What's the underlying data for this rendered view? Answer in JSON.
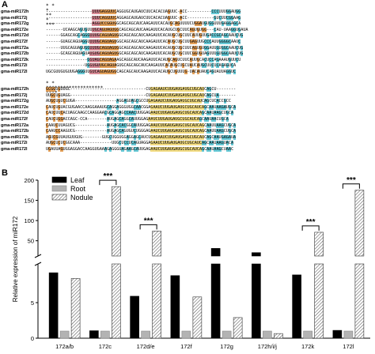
{
  "panel_a": {
    "label": "A",
    "block1": {
      "stars": "              *     *   *   **   *     ***",
      "rows": [
        {
          "name": "gma-miR172h",
          "seq": "-------------------UUUGAGGUUCAGGUGCAUGAUCUUCACACUAGUUC-ACC----------CCCUUUGGAUGG"
        },
        {
          "name": "gma-miR172j",
          "seq": "-------------------UUUCAGGUUCAGGAGCAUGAUCUUCACACUAGUUC-ACC-----------GUCUUCGGAAG"
        },
        {
          "name": "gma-miR172g",
          "seq": "-------------------AGGUCCGGUGGCAGCAGCAUCAAGAUUCACAUGCAGUUUUCUGGAUGUGGUUUGAGGAGCA"
        },
        {
          "name": "gma-miR172e",
          "seq": "-------UCAAGCAGUGUUUGCAGUAGUGGCAGCAGCAUCAAGAUUCACAUGCUGCUUCAGUGUGG---CAU-UAAGGUGAUA"
        },
        {
          "name": "gma-miR172d",
          "seq": "------GGAGCAGCAGGGUUUGCAGUAGUGGCAGCAGCAUCAAGAUUCACAUGCUGCUUCAUUGUUGACCGCAGCAAUCUG"
        },
        {
          "name": "gma-miR172f",
          "seq": "------GUAGCAGUAGGUUUUGCAGUAGUGGCAGCAGCAUCAAGAUUCACAUGCUGCUUGAGUUGCCCAUUGGGGCAAUC"
        },
        {
          "name": "gma-miR172a",
          "seq": "------UUGCAGUAGUGGUUUGCAGUAGUGGCAGCAGCAUCAAGAUUCACAUGCUGCUUCAGUGUGGAUUGUGGCAAUCUG"
        },
        {
          "name": "gma-miR172b",
          "seq": "------GCAGCAGUAGUAUGUGCAGUAGUGGCAGCAGCAUCAAGAUUCACAUGCUGCUUCGGUGUAGUUUGUGGCAAUCUG"
        },
        {
          "name": "gma-miR172k",
          "seq": "-----------------GGUAGCAGUAGAAGCAGGCAUCAAGAUUCACAUGCAGUCUUCAUUGCACUCCAGAAAUGUUCU"
        },
        {
          "name": "gma-miR172i",
          "seq": "----------------UGGUGUUGCAGUAGUGCAGCAGCAUCAAGAUUCACAUGCUGCUAUCAUGCUUCUCAGAGUCA"
        },
        {
          "name": "gma-miR172l",
          "seq": "UGCGUUGUGUUGAGGGUUGUCAGUAGUGGCAGCAGCAUCAAGAUUCACAUGCUGUUUG-UACAUAUCAGUAUUAGGUC"
        }
      ]
    },
    "block2": {
      "stars": "           *                                     *  ********************   ****",
      "rows": [
        {
          "name": "gma-miR172h",
          "seq": "GCGGUGUUGC-------------------------------CUGAGAAUCUUGAUGAUGCUGCAUCAGCU--------"
        },
        {
          "name": "gma-miR172j",
          "seq": "UUGCUGUAGG-------------------------------CUGAGAAUCUUGAUGAUGCUGCAUCAGCUA-------"
        },
        {
          "name": "gma-miR172g",
          "seq": "AUGCUGUCGUGA-----------------AGGAGUAGCGCCUGAGAAUCUUGAUGAUGCUGCAUCAGCUCACCGCC"
        },
        {
          "name": "gma-miR172e",
          "seq": "CAUCUGUACGUGAACCAAGGAAAUGCAGGAGGGUGGCAACGGAGAAUCUUGAUGAUGCUGCAUCAGCAAUAAGAUGCA"
        },
        {
          "name": "gma-miR172d",
          "seq": "CAUCUUCACUAGCAAGCCAAGGAACGCAGGAGCCAACUUGGAGAAUCUUGAUGAUGCUGCAUCAGCAAUAAGCUGCA"
        },
        {
          "name": "gma-miR172f",
          "seq": "CAUCUGGACCAGC-CCA--------AUGAGCAGGCAUUGGAGAAUCUUGAUGAUGCUGCAUCAGCAAUAACUGCA"
        },
        {
          "name": "gma-miR172a",
          "seq": "CAAUCUUAGUCG-------------AUGAGCACGGCAUUGGAGAAUCUUGAUGAUGCUGCAUCAGCAAUUAAGCUGCA"
        },
        {
          "name": "gma-miR172b",
          "seq": "CAAUCCAAGUCG-------------AUGAGCAGUGUCUGGGAGAAUCUUGAUGAUGCUGCAUCAGCAAUUAAGCUGCA"
        },
        {
          "name": "gma-miR172k",
          "seq": "AGUCGUUAUGUUGUG--------GUGCUGGUGGAGGAGCAUCUGAGAAUCUUGAUGAUGCUGCAUCAGCAAUGAGAUA"
        },
        {
          "name": "gma-miR172i",
          "seq": "AUGCUCUCGGCAAA-------------UUGCUCCUCAGUAGGAGAAUCUUGAUGAUGCUGCAUCAGCAAUAAGUACA"
        },
        {
          "name": "gma-miR172l",
          "seq": "UGAUUAGUGGAGGACCAAGGUGAAAGAGGGUAGAAGCAUUGAGAAUCUUGAUGAUGCUGCAUCAGCAAUAAGCUAAC"
        }
      ]
    }
  },
  "panel_b": {
    "label": "B"
  },
  "chart_data": {
    "type": "bar",
    "title": "",
    "ylabel": "Relative expression of miR172",
    "xlabel": "",
    "categories": [
      "172a/b",
      "172c",
      "172d/e",
      "172f",
      "172g",
      "172h/i/j",
      "172k",
      "172l"
    ],
    "series": [
      {
        "name": "Leaf",
        "values": [
          9.2,
          1.05,
          5.9,
          8.8,
          31,
          20.5,
          8.9,
          1.1
        ]
      },
      {
        "name": "Root",
        "values": [
          1.0,
          1.0,
          1.0,
          1.0,
          1.0,
          1.0,
          1.0,
          1.0
        ]
      },
      {
        "name": "Nodule",
        "values": [
          8.4,
          184,
          74,
          5.8,
          2.9,
          0.65,
          71,
          175
        ]
      }
    ],
    "axis": {
      "broken": true,
      "lower_range": [
        0,
        10
      ],
      "lower_ticks": [
        0,
        5
      ],
      "upper_range": [
        20,
        200
      ],
      "upper_ticks": [
        50,
        100,
        150,
        200
      ]
    },
    "legend_position": "top-left",
    "significance": [
      {
        "category": "172c",
        "label": "***"
      },
      {
        "category": "172d/e",
        "label": "***"
      },
      {
        "category": "172k",
        "label": "***"
      },
      {
        "category": "172l",
        "label": "***"
      }
    ]
  },
  "colors": {
    "leaf": "#000000",
    "root": "#b3b3b3",
    "nodule_hatch": "#555555",
    "aln_orange": "#e6a25a",
    "aln_cyan": "#66c9d6",
    "aln_pink": "#d98a96",
    "aln_yellow": "#f2dc82"
  }
}
